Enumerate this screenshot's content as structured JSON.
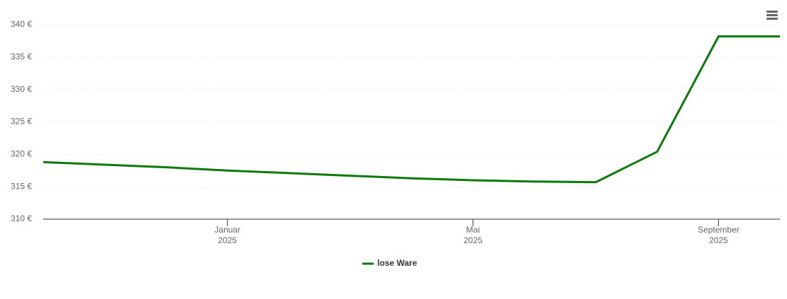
{
  "chart_data": {
    "type": "line",
    "x": [
      "2024-10",
      "2024-11",
      "2024-12",
      "2025-01",
      "2025-02",
      "2025-03",
      "2025-04",
      "2025-05",
      "2025-06",
      "2025-07",
      "2025-08",
      "2025-09",
      "2025-10"
    ],
    "series": [
      {
        "name": "lose Ware",
        "color": "#0a7a0a",
        "values": [
          318.8,
          318.4,
          318.0,
          317.5,
          317.1,
          316.7,
          316.3,
          316.0,
          315.8,
          315.7,
          320.4,
          338.2,
          338.2
        ]
      }
    ],
    "xlim": [
      "2024-10",
      "2025-10"
    ],
    "xticks": [
      {
        "value": "2025-01",
        "label": "Januar",
        "year": "2025"
      },
      {
        "value": "2025-05",
        "label": "Mai",
        "year": "2025"
      },
      {
        "value": "2025-09",
        "label": "September",
        "year": "2025"
      }
    ],
    "ylim": [
      310,
      340
    ],
    "yticks": [
      {
        "value": 310,
        "label": "310 €"
      },
      {
        "value": 315,
        "label": "315 €"
      },
      {
        "value": 320,
        "label": "320 €"
      },
      {
        "value": 325,
        "label": "325 €"
      },
      {
        "value": 330,
        "label": "330 €"
      },
      {
        "value": 335,
        "label": "335 €"
      },
      {
        "value": 340,
        "label": "340 €"
      }
    ],
    "grid": true,
    "legend": "bottom"
  }
}
